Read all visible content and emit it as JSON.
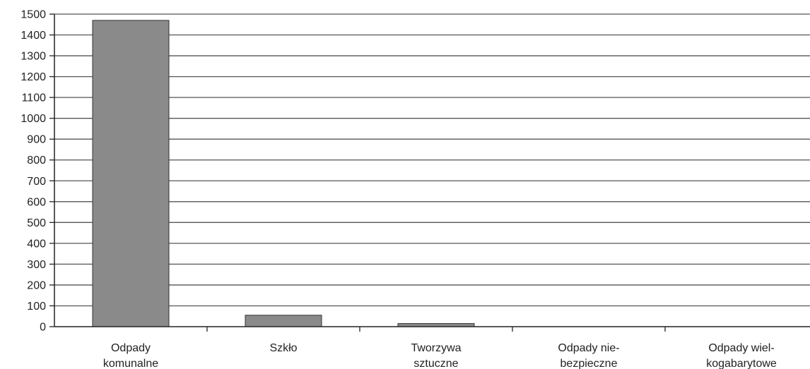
{
  "chart_data": {
    "type": "bar",
    "categories": [
      [
        "Odpady",
        "komunalne"
      ],
      [
        "Szkło"
      ],
      [
        "Tworzywa",
        "sztuczne"
      ],
      [
        "Odpady nie-",
        "bezpieczne"
      ],
      [
        "Odpady wiel-",
        "kogabarytowe"
      ]
    ],
    "values": [
      1470,
      55,
      15,
      0,
      0
    ],
    "title": "",
    "xlabel": "",
    "ylabel": "",
    "ylim": [
      0,
      1500
    ],
    "yticks": [
      0,
      100,
      200,
      300,
      400,
      500,
      600,
      700,
      800,
      900,
      1000,
      1100,
      1200,
      1300,
      1400,
      1500
    ],
    "grid": true,
    "colors": {
      "bar": "#8a8a8a",
      "bar_stroke": "#333333",
      "grid": "#555555",
      "axis": "#222222"
    }
  }
}
